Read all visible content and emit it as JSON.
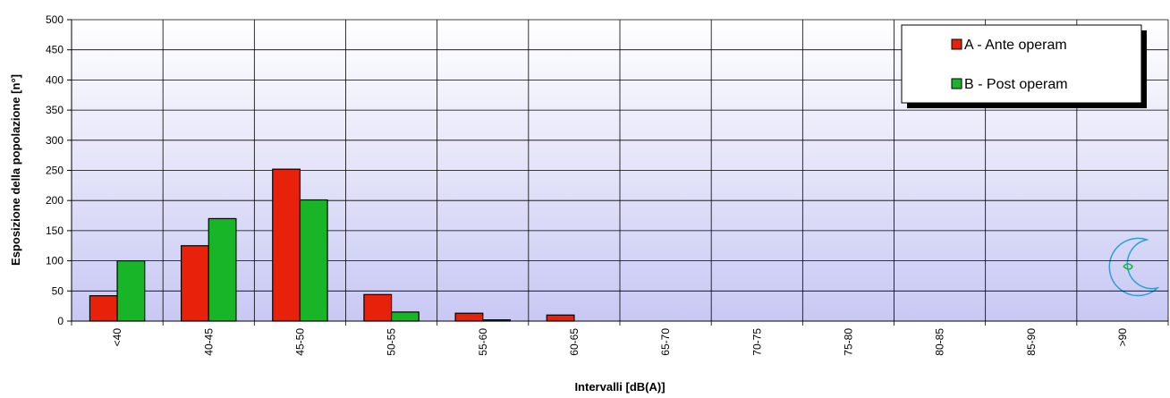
{
  "chart_data": {
    "type": "bar",
    "x_label": "Intervalli [dB(A)]",
    "y_label": "Esposizione della popolazione [n°]",
    "categories": [
      "<40",
      "40-45",
      "45-50",
      "50-55",
      "55-60",
      "60-65",
      "65-70",
      "70-75",
      "75-80",
      "80-85",
      "85-90",
      ">90"
    ],
    "series": [
      {
        "name": "A - Ante operam",
        "color": "#e8220a",
        "values": [
          42,
          125,
          252,
          44,
          13,
          10,
          0,
          0,
          0,
          0,
          0,
          0
        ]
      },
      {
        "name": "B - Post operam",
        "color": "#19b528",
        "values": [
          100,
          170,
          201,
          15,
          2,
          0,
          0,
          0,
          0,
          0,
          0,
          0
        ]
      }
    ],
    "ylim": [
      0,
      500
    ],
    "yticks": [
      0,
      50,
      100,
      150,
      200,
      250,
      300,
      350,
      400,
      450,
      500
    ],
    "grid": true,
    "legend": "upper right"
  }
}
